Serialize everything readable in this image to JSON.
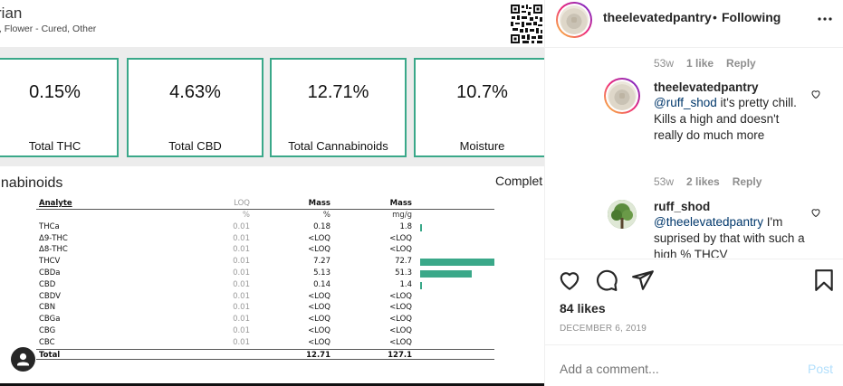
{
  "report": {
    "strain_title": "rian",
    "strain_subtitle": "t, Flower - Cured, Other",
    "stats": [
      {
        "value": "0.15%",
        "label": "Total THC"
      },
      {
        "value": "4.63%",
        "label": "Total CBD"
      },
      {
        "value": "12.71%",
        "label": "Total Cannabinoids"
      },
      {
        "value": "10.7%",
        "label": "Moisture"
      }
    ],
    "section_title": "nnabinoids",
    "complete_label": "Complet",
    "table": {
      "headers": {
        "analyte": "Analyte",
        "loq": "LOQ",
        "mass_pct": "Mass",
        "mass_mg": "Mass"
      },
      "units": {
        "loq": "%",
        "mass_pct": "%",
        "mass_mg": "mg/g"
      },
      "rows": [
        {
          "analyte": "THCa",
          "loq": "0.01",
          "mass_pct": "0.18",
          "mass_mg": "1.8",
          "bar_fraction": 0.02
        },
        {
          "analyte": "Δ9-THC",
          "loq": "0.01",
          "mass_pct": "<LOQ",
          "mass_mg": "<LOQ",
          "bar_fraction": 0
        },
        {
          "analyte": "Δ8-THC",
          "loq": "0.01",
          "mass_pct": "<LOQ",
          "mass_mg": "<LOQ",
          "bar_fraction": 0
        },
        {
          "analyte": "THCV",
          "loq": "0.01",
          "mass_pct": "7.27",
          "mass_mg": "72.7",
          "bar_fraction": 1.0
        },
        {
          "analyte": "CBDa",
          "loq": "0.01",
          "mass_pct": "5.13",
          "mass_mg": "51.3",
          "bar_fraction": 0.7
        },
        {
          "analyte": "CBD",
          "loq": "0.01",
          "mass_pct": "0.14",
          "mass_mg": "1.4",
          "bar_fraction": 0.02
        },
        {
          "analyte": "CBDV",
          "loq": "0.01",
          "mass_pct": "<LOQ",
          "mass_mg": "<LOQ",
          "bar_fraction": 0
        },
        {
          "analyte": "CBN",
          "loq": "0.01",
          "mass_pct": "<LOQ",
          "mass_mg": "<LOQ",
          "bar_fraction": 0
        },
        {
          "analyte": "CBGa",
          "loq": "0.01",
          "mass_pct": "<LOQ",
          "mass_mg": "<LOQ",
          "bar_fraction": 0
        },
        {
          "analyte": "CBG",
          "loq": "0.01",
          "mass_pct": "<LOQ",
          "mass_mg": "<LOQ",
          "bar_fraction": 0
        },
        {
          "analyte": "CBC",
          "loq": "0.01",
          "mass_pct": "<LOQ",
          "mass_mg": "<LOQ",
          "bar_fraction": 0
        }
      ],
      "total": {
        "analyte": "Total",
        "mass_pct": "12.71",
        "mass_mg": "127.1"
      }
    }
  },
  "header": {
    "username": "theelevatedpantry",
    "separator": "•",
    "follow_status": "Following",
    "more_icon": "more-horizontal-icon"
  },
  "comments": {
    "top_meta": {
      "time": "53w",
      "likes": "1 like",
      "reply": "Reply"
    },
    "items": [
      {
        "username": "theelevatedpantry",
        "mention": "@ruff_shod",
        "text": " it's pretty chill. Kills a high and doesn't really do much more",
        "meta": {
          "time": "53w",
          "likes": "2 likes",
          "reply": "Reply"
        }
      },
      {
        "username": "ruff_shod",
        "mention": "@theelevatedpantry",
        "text": " I'm suprised by that with such a high % THCV"
      }
    ]
  },
  "actions": {
    "like_icon": "heart-icon",
    "comment_icon": "comment-icon",
    "share_icon": "share-icon",
    "save_icon": "bookmark-icon"
  },
  "likes": "84 likes",
  "date": "DECEMBER 6, 2019",
  "add_comment": {
    "placeholder": "Add a comment...",
    "post_label": "Post"
  },
  "colors": {
    "accent_teal": "#3aa889",
    "link_blue": "#00376b",
    "post_disabled": "#b2dffc",
    "muted": "#8e8e8e"
  }
}
